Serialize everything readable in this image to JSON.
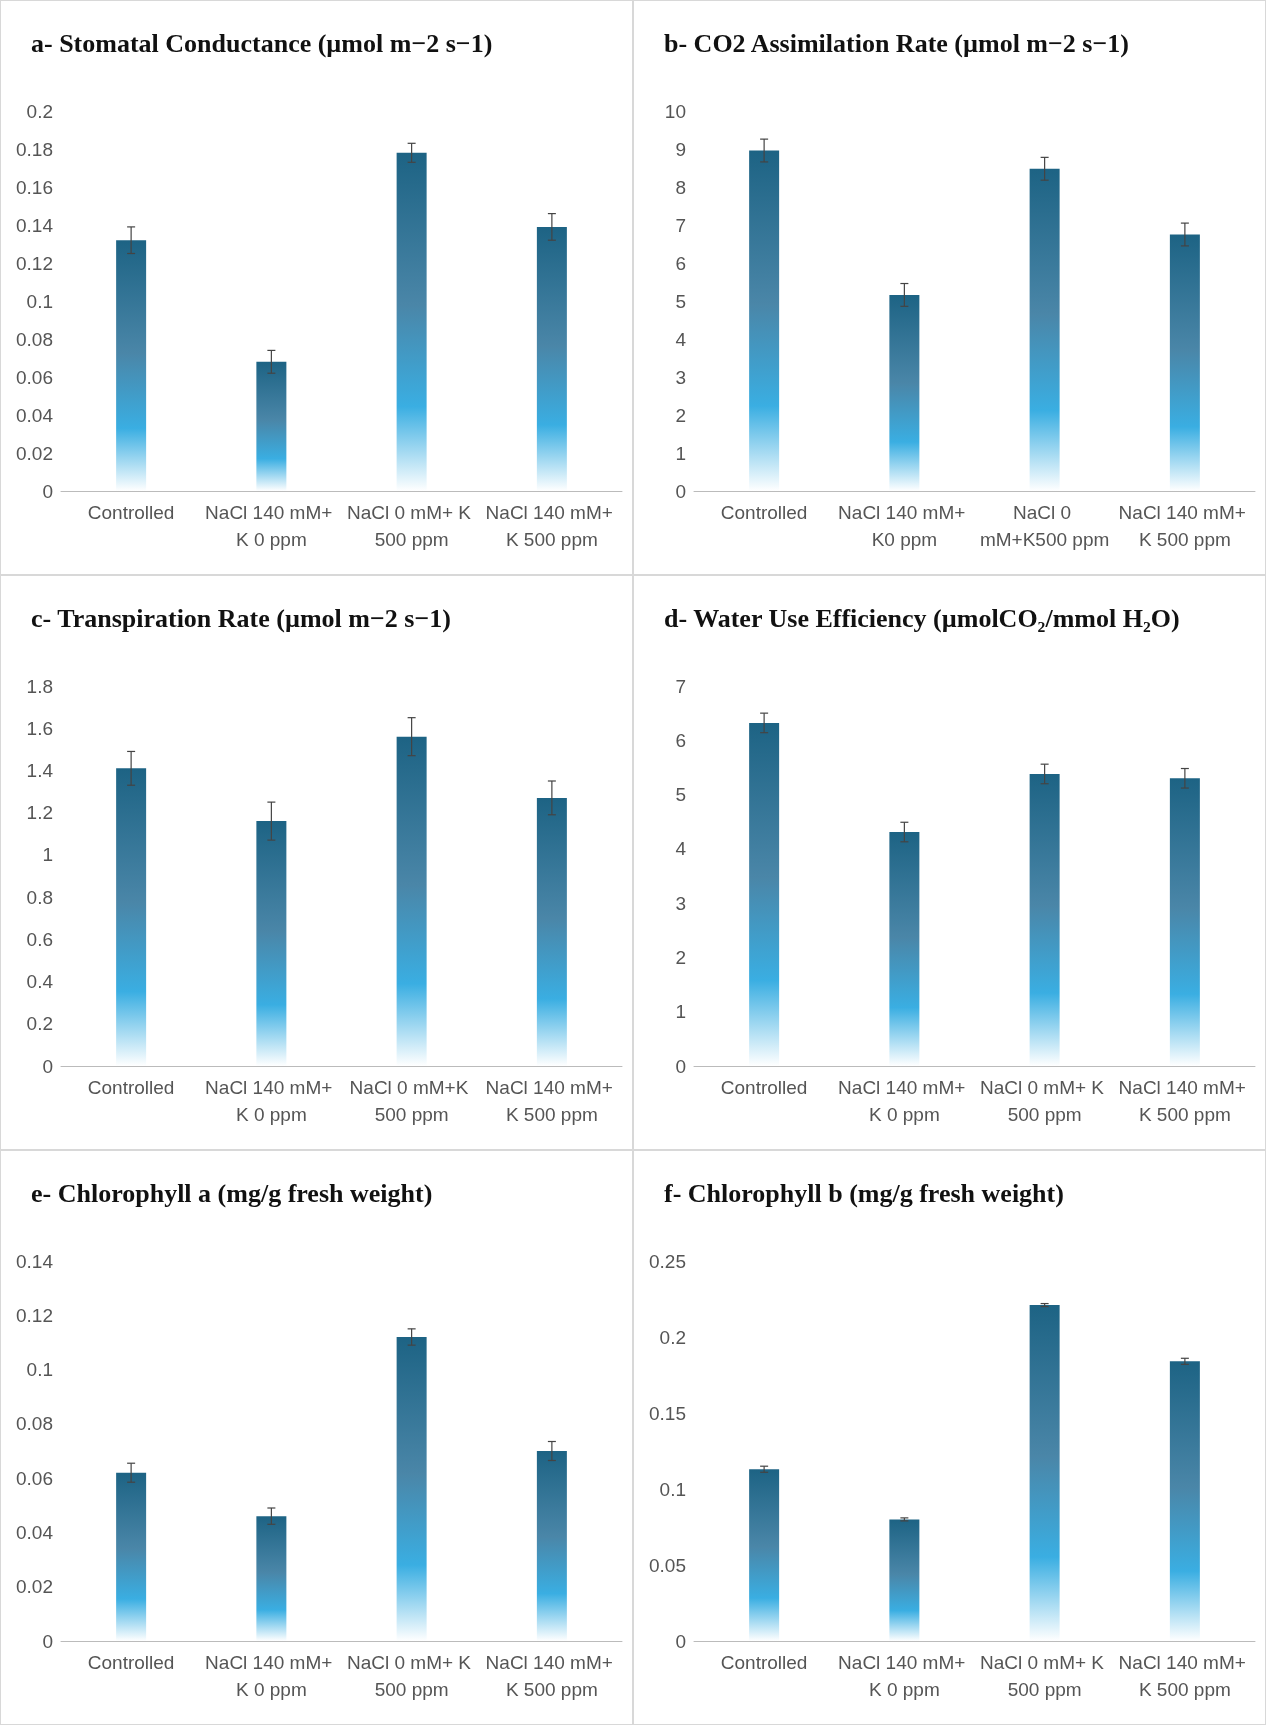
{
  "chart_data": [
    {
      "type": "bar",
      "title": "a- Stomatal Conductance (µmol m−2 s−1)",
      "categories": [
        "Controlled",
        "NaCl 140 mM+ K 0 ppm",
        "NaCl 0 mM+ K 500 ppm",
        "NaCl 140 mM+ K 500 ppm"
      ],
      "values": [
        0.132,
        0.068,
        0.178,
        0.139
      ],
      "errors": [
        0.007,
        0.006,
        0.005,
        0.007
      ],
      "color": "#1d6384",
      "ylim": [
        0,
        0.2
      ],
      "yticks": [
        0,
        0.02,
        0.04,
        0.06,
        0.08,
        0.1,
        0.12,
        0.14,
        0.16,
        0.18,
        0.2
      ],
      "grid": false
    },
    {
      "type": "bar",
      "title": "b- CO2 Assimilation Rate (µmol m−2 s−1)",
      "categories": [
        "Controlled",
        "NaCl 140 mM+ K0 ppm",
        "NaCl 0 mM+K500 ppm",
        "NaCl 140 mM+ K 500 ppm"
      ],
      "values": [
        8.96,
        5.16,
        8.48,
        6.75
      ],
      "errors": [
        0.3,
        0.3,
        0.3,
        0.3
      ],
      "color": "#1d6384",
      "ylim": [
        0,
        10
      ],
      "yticks": [
        0,
        1,
        2,
        3,
        4,
        5,
        6,
        7,
        8,
        9,
        10
      ],
      "grid": false
    },
    {
      "type": "bar",
      "title": "c- Transpiration Rate (µmol m−2 s−1)",
      "categories": [
        "Controlled",
        "NaCl 140 mM+ K 0 ppm",
        "NaCl 0 mM+K 500 ppm",
        "NaCl 140 mM+ K 500 ppm"
      ],
      "values": [
        1.41,
        1.16,
        1.56,
        1.27
      ],
      "errors": [
        0.08,
        0.09,
        0.09,
        0.08
      ],
      "color": "#1d6384",
      "ylim": [
        0,
        1.8
      ],
      "yticks": [
        0,
        0.2,
        0.4,
        0.6,
        0.8,
        1,
        1.2,
        1.4,
        1.6,
        1.8
      ],
      "grid": false
    },
    {
      "type": "bar",
      "title": "d- Water Use Efficiency (µmolCO₂/mmol H₂O)",
      "categories": [
        "Controlled",
        "NaCl 140 mM+ K 0 ppm",
        "NaCl 0 mM+ K 500 ppm",
        "NaCl 140 mM+ K 500 ppm"
      ],
      "values": [
        6.32,
        4.31,
        5.38,
        5.3
      ],
      "errors": [
        0.18,
        0.18,
        0.18,
        0.18
      ],
      "color": "#1d6384",
      "ylim": [
        0,
        7
      ],
      "yticks": [
        0,
        1,
        2,
        3,
        4,
        5,
        6,
        7
      ],
      "grid": false
    },
    {
      "type": "bar",
      "title": "e- Chlorophyll a (mg/g fresh weight)",
      "categories": [
        "Controlled",
        "NaCl 140 mM+ K 0 ppm",
        "NaCl 0 mM+ K 500 ppm",
        "NaCl 140 mM+ K 500 ppm"
      ],
      "values": [
        0.062,
        0.046,
        0.112,
        0.07
      ],
      "errors": [
        0.0035,
        0.003,
        0.003,
        0.0035
      ],
      "color": "#1d6384",
      "ylim": [
        0,
        0.14
      ],
      "yticks": [
        0,
        0.02,
        0.04,
        0.06,
        0.08,
        0.1,
        0.12,
        0.14
      ],
      "grid": false
    },
    {
      "type": "bar",
      "title": "f- Chlorophyll b (mg/g fresh weight)",
      "categories": [
        "Controlled",
        "NaCl 140 mM+ K 0 ppm",
        "NaCl 0 mM+ K 500 ppm",
        "NaCl 140 mM+ K 500 ppm"
      ],
      "values": [
        0.113,
        0.08,
        0.221,
        0.184
      ],
      "errors": [
        0.002,
        0.001,
        0.001,
        0.002
      ],
      "color": "#1d6384",
      "ylim": [
        0,
        0.25
      ],
      "yticks": [
        0,
        0.05,
        0.1,
        0.15,
        0.2,
        0.25
      ],
      "grid": false
    }
  ]
}
